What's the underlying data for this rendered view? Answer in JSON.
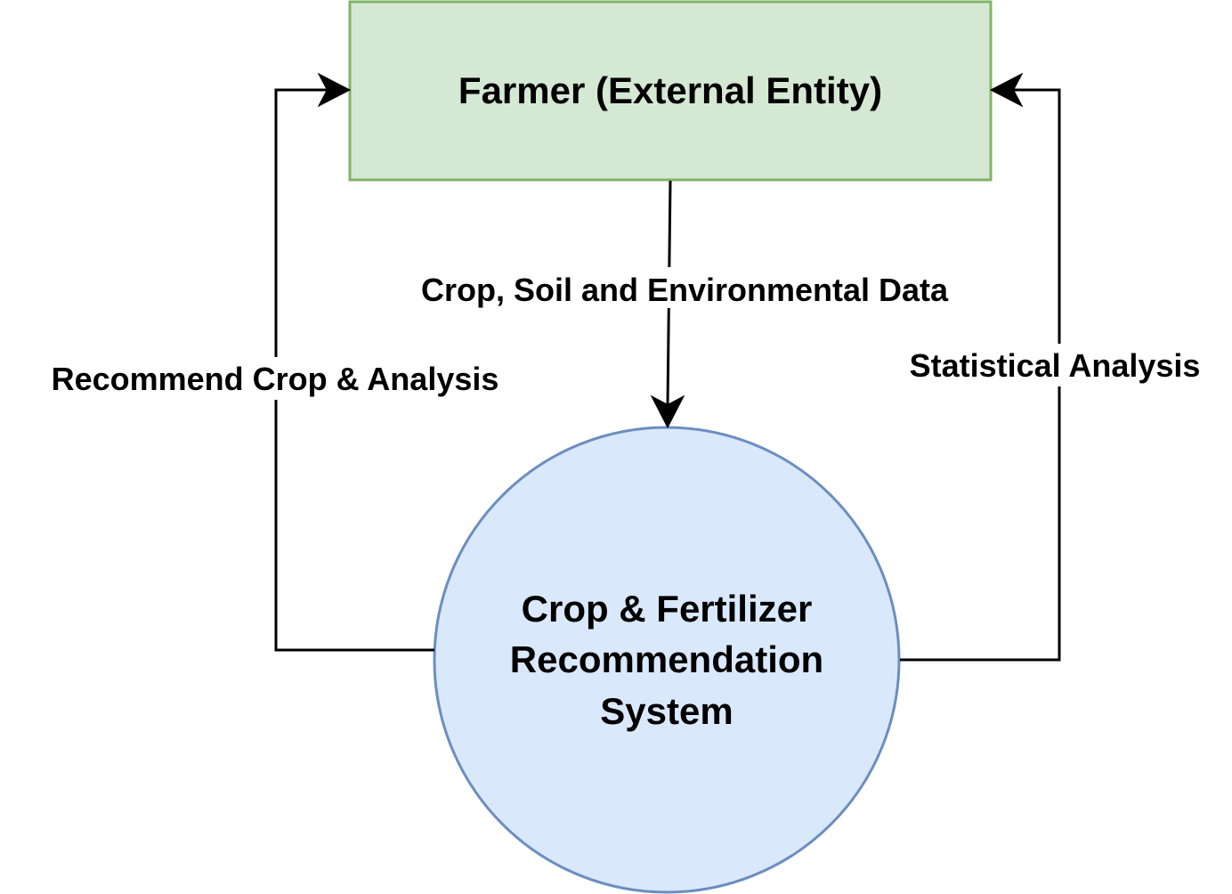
{
  "nodes": {
    "farmer": {
      "label": "Farmer (External Entity)",
      "fill": "#d5e8d4",
      "stroke": "#82b366"
    },
    "system": {
      "label_lines": [
        "Crop & Fertilizer",
        "Recommendation",
        "System"
      ],
      "fill": "#dae8fc",
      "stroke": "#6c8ebf"
    }
  },
  "edges": {
    "data_flow": {
      "label": "Crop, Soil and Environmental Data"
    },
    "recommend_flow": {
      "label": "Recommend Crop & Analysis"
    },
    "stats_flow": {
      "label": "Statistical Analysis"
    }
  },
  "colors": {
    "line": "#000000",
    "background": "#ffffff"
  }
}
